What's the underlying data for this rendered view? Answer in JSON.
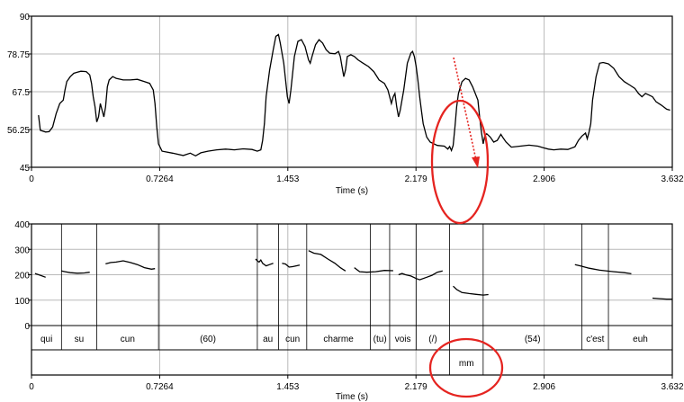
{
  "chart_data": [
    {
      "type": "line",
      "title": "",
      "xlabel": "Time (s)",
      "ylabel": "",
      "xlim": [
        0,
        3.632
      ],
      "ylim": [
        45,
        90
      ],
      "x_ticks": [
        "0",
        "0.7264",
        "1.453",
        "2.179",
        "2.906",
        "3.632"
      ],
      "y_ticks": [
        "45",
        "56.25",
        "67.5",
        "78.75",
        "90"
      ],
      "grid": true,
      "series": [
        {
          "points": [
            [
              0.04,
              60.5
            ],
            [
              0.05,
              56
            ],
            [
              0.08,
              55.5
            ],
            [
              0.1,
              55.6
            ],
            [
              0.12,
              57
            ],
            [
              0.14,
              61
            ],
            [
              0.16,
              64
            ],
            [
              0.18,
              65
            ],
            [
              0.19,
              68
            ],
            [
              0.2,
              70.5
            ],
            [
              0.22,
              72
            ],
            [
              0.24,
              73
            ],
            [
              0.26,
              73.3
            ],
            [
              0.28,
              73.6
            ],
            [
              0.31,
              73.5
            ],
            [
              0.33,
              72.5
            ],
            [
              0.34,
              70
            ],
            [
              0.35,
              66
            ],
            [
              0.36,
              63
            ],
            [
              0.37,
              58.5
            ],
            [
              0.38,
              60
            ],
            [
              0.39,
              64
            ],
            [
              0.4,
              62
            ],
            [
              0.41,
              60
            ],
            [
              0.42,
              63
            ],
            [
              0.43,
              69
            ],
            [
              0.44,
              71
            ],
            [
              0.46,
              72
            ],
            [
              0.48,
              71.5
            ],
            [
              0.52,
              71
            ],
            [
              0.56,
              71
            ],
            [
              0.6,
              71.2
            ],
            [
              0.64,
              70.5
            ],
            [
              0.67,
              70
            ],
            [
              0.69,
              68
            ],
            [
              0.7,
              64
            ],
            [
              0.71,
              57
            ],
            [
              0.72,
              52
            ],
            [
              0.74,
              49.8
            ],
            [
              0.8,
              49.2
            ],
            [
              0.86,
              48.5
            ],
            [
              0.9,
              49.2
            ],
            [
              0.93,
              48.4
            ],
            [
              0.96,
              49.3
            ],
            [
              1.0,
              49.8
            ],
            [
              1.05,
              50.2
            ],
            [
              1.1,
              50.4
            ],
            [
              1.15,
              50.2
            ],
            [
              1.2,
              50.5
            ],
            [
              1.25,
              50.3
            ],
            [
              1.28,
              49.8
            ],
            [
              1.3,
              50.2
            ],
            [
              1.31,
              53
            ],
            [
              1.32,
              58
            ],
            [
              1.33,
              66
            ],
            [
              1.35,
              74
            ],
            [
              1.37,
              80
            ],
            [
              1.385,
              84
            ],
            [
              1.4,
              84.5
            ],
            [
              1.41,
              82
            ],
            [
              1.43,
              76
            ],
            [
              1.44,
              71
            ],
            [
              1.45,
              66
            ],
            [
              1.46,
              64
            ],
            [
              1.47,
              68
            ],
            [
              1.49,
              78
            ],
            [
              1.51,
              82.5
            ],
            [
              1.53,
              83
            ],
            [
              1.55,
              81
            ],
            [
              1.57,
              77
            ],
            [
              1.58,
              76
            ],
            [
              1.59,
              78
            ],
            [
              1.61,
              81.5
            ],
            [
              1.63,
              83
            ],
            [
              1.65,
              82
            ],
            [
              1.67,
              80
            ],
            [
              1.69,
              79
            ],
            [
              1.72,
              78.8
            ],
            [
              1.74,
              79.5
            ],
            [
              1.75,
              78
            ],
            [
              1.76,
              75
            ],
            [
              1.77,
              72
            ],
            [
              1.78,
              74
            ],
            [
              1.79,
              78
            ],
            [
              1.81,
              78.5
            ],
            [
              1.83,
              78
            ],
            [
              1.85,
              77
            ],
            [
              1.88,
              76
            ],
            [
              1.91,
              75
            ],
            [
              1.94,
              73.5
            ],
            [
              1.97,
              71
            ],
            [
              2.0,
              70
            ],
            [
              2.02,
              68
            ],
            [
              2.04,
              64
            ],
            [
              2.05,
              66
            ],
            [
              2.06,
              67
            ],
            [
              2.07,
              63
            ],
            [
              2.08,
              60
            ],
            [
              2.09,
              62
            ],
            [
              2.11,
              68
            ],
            [
              2.13,
              76
            ],
            [
              2.15,
              79
            ],
            [
              2.16,
              79.5
            ],
            [
              2.17,
              78
            ],
            [
              2.18,
              75
            ],
            [
              2.19,
              71
            ],
            [
              2.2,
              66
            ],
            [
              2.21,
              62
            ],
            [
              2.22,
              58
            ],
            [
              2.24,
              54
            ],
            [
              2.26,
              52.5
            ],
            [
              2.3,
              51.5
            ],
            [
              2.34,
              51.3
            ],
            [
              2.36,
              50.4
            ],
            [
              2.37,
              51.2
            ],
            [
              2.38,
              50
            ],
            [
              2.39,
              51.5
            ],
            [
              2.4,
              57
            ],
            [
              2.41,
              63
            ],
            [
              2.42,
              67
            ],
            [
              2.44,
              70.5
            ],
            [
              2.46,
              71.5
            ],
            [
              2.48,
              71
            ],
            [
              2.5,
              69
            ],
            [
              2.53,
              65
            ],
            [
              2.54,
              60
            ],
            [
              2.55,
              55.5
            ],
            [
              2.56,
              52
            ],
            [
              2.57,
              54.5
            ],
            [
              2.58,
              55
            ],
            [
              2.6,
              54
            ],
            [
              2.62,
              52.5
            ],
            [
              2.64,
              53
            ],
            [
              2.66,
              54.8
            ],
            [
              2.67,
              54
            ],
            [
              2.69,
              52.5
            ],
            [
              2.72,
              51
            ],
            [
              2.77,
              51.3
            ],
            [
              2.82,
              51.6
            ],
            [
              2.87,
              51.3
            ],
            [
              2.9,
              50.8
            ],
            [
              2.93,
              50.4
            ],
            [
              2.96,
              50.2
            ],
            [
              3.0,
              50.4
            ],
            [
              3.04,
              50.3
            ],
            [
              3.08,
              51.1
            ],
            [
              3.1,
              53
            ],
            [
              3.12,
              54.3
            ],
            [
              3.14,
              55.2
            ],
            [
              3.15,
              53.5
            ],
            [
              3.16,
              55.5
            ],
            [
              3.17,
              58
            ],
            [
              3.18,
              65
            ],
            [
              3.2,
              72
            ],
            [
              3.22,
              76
            ],
            [
              3.24,
              76.2
            ],
            [
              3.27,
              75.8
            ],
            [
              3.3,
              74.5
            ],
            [
              3.33,
              72
            ],
            [
              3.36,
              70.5
            ],
            [
              3.39,
              69.5
            ],
            [
              3.42,
              68.5
            ],
            [
              3.44,
              67
            ],
            [
              3.46,
              66
            ],
            [
              3.48,
              67
            ],
            [
              3.5,
              66.5
            ],
            [
              3.52,
              66
            ],
            [
              3.54,
              64.5
            ],
            [
              3.57,
              63.5
            ],
            [
              3.6,
              62.3
            ],
            [
              3.62,
              62
            ]
          ]
        }
      ]
    },
    {
      "type": "line",
      "title": "",
      "xlabel": "Time (s)",
      "ylabel": "",
      "xlim": [
        0,
        3.632
      ],
      "ylim": [
        0,
        400
      ],
      "x_ticks": [
        "0",
        "0.7264",
        "1.453",
        "2.179",
        "2.906",
        "3.632"
      ],
      "y_ticks": [
        "0",
        "100",
        "200",
        "300",
        "400"
      ],
      "grid": true,
      "series": [
        {
          "points": [
            [
              0.02,
              205
            ],
            [
              0.05,
              198
            ],
            [
              0.08,
              190
            ]
          ]
        },
        {
          "points": [
            [
              0.17,
              215
            ],
            [
              0.19,
              212
            ],
            [
              0.22,
              208
            ],
            [
              0.26,
              206
            ],
            [
              0.3,
              207
            ],
            [
              0.33,
              210
            ]
          ]
        },
        {
          "points": [
            [
              0.42,
              243
            ],
            [
              0.45,
              248
            ],
            [
              0.48,
              250
            ],
            [
              0.52,
              255
            ],
            [
              0.56,
              248
            ],
            [
              0.6,
              240
            ],
            [
              0.64,
              228
            ],
            [
              0.68,
              222
            ],
            [
              0.7,
              224
            ]
          ]
        },
        {
          "points": [
            [
              1.27,
              262
            ],
            [
              1.28,
              255
            ],
            [
              1.29,
              250
            ],
            [
              1.3,
              258
            ],
            [
              1.31,
              245
            ],
            [
              1.33,
              235
            ],
            [
              1.35,
              240
            ],
            [
              1.37,
              245
            ]
          ]
        },
        {
          "points": [
            [
              1.42,
              245
            ],
            [
              1.44,
              242
            ],
            [
              1.46,
              230
            ],
            [
              1.48,
              232
            ],
            [
              1.5,
              235
            ],
            [
              1.52,
              238
            ]
          ]
        },
        {
          "points": [
            [
              1.57,
              295
            ],
            [
              1.6,
              285
            ],
            [
              1.64,
              280
            ],
            [
              1.68,
              262
            ],
            [
              1.72,
              245
            ],
            [
              1.75,
              228
            ],
            [
              1.78,
              215
            ]
          ]
        },
        {
          "points": [
            [
              1.83,
              228
            ],
            [
              1.86,
              212
            ],
            [
              1.9,
              210
            ],
            [
              1.95,
              212
            ],
            [
              2.0,
              217
            ],
            [
              2.05,
              216
            ]
          ]
        },
        {
          "points": [
            [
              2.08,
              200
            ],
            [
              2.1,
              205
            ],
            [
              2.12,
              200
            ],
            [
              2.15,
              195
            ],
            [
              2.18,
              185
            ],
            [
              2.2,
              180
            ],
            [
              2.24,
              190
            ],
            [
              2.27,
              198
            ],
            [
              2.3,
              210
            ],
            [
              2.33,
              215
            ]
          ]
        },
        {
          "points": [
            [
              2.39,
              155
            ],
            [
              2.41,
              142
            ],
            [
              2.44,
              130
            ],
            [
              2.48,
              126
            ],
            [
              2.52,
              123
            ],
            [
              2.56,
              120
            ],
            [
              2.59,
              122
            ]
          ]
        },
        {
          "points": [
            [
              3.08,
              240
            ],
            [
              3.11,
              235
            ],
            [
              3.16,
              226
            ],
            [
              3.22,
              218
            ],
            [
              3.3,
              212
            ],
            [
              3.36,
              208
            ],
            [
              3.4,
              204
            ]
          ]
        },
        {
          "points": [
            [
              3.52,
              108
            ],
            [
              3.56,
              106
            ],
            [
              3.6,
              104
            ],
            [
              3.63,
              104
            ]
          ]
        }
      ],
      "annotation_tier_1": [
        {
          "label": "qui",
          "start": 0.0,
          "end": 0.17
        },
        {
          "label": "su",
          "start": 0.17,
          "end": 0.37
        },
        {
          "label": "cun",
          "start": 0.37,
          "end": 0.72
        },
        {
          "label": "(60)",
          "start": 0.72,
          "end": 1.28
        },
        {
          "label": "au",
          "start": 1.28,
          "end": 1.4
        },
        {
          "label": "cun",
          "start": 1.4,
          "end": 1.56
        },
        {
          "label": "charme",
          "start": 1.56,
          "end": 1.92
        },
        {
          "label": "(tu)",
          "start": 1.92,
          "end": 2.03
        },
        {
          "label": "vois",
          "start": 2.03,
          "end": 2.18
        },
        {
          "label": "(/)",
          "start": 2.18,
          "end": 2.37
        },
        {
          "label": "",
          "start": 2.37,
          "end": 2.56
        },
        {
          "label": "(54)",
          "start": 2.56,
          "end": 3.12
        },
        {
          "label": "c'est",
          "start": 3.12,
          "end": 3.27
        },
        {
          "label": "euh",
          "start": 3.27,
          "end": 3.632
        }
      ],
      "annotation_tier_2": [
        {
          "label": "",
          "start": 0.0,
          "end": 2.37
        },
        {
          "label": "mm",
          "start": 2.37,
          "end": 2.56
        },
        {
          "label": "",
          "start": 2.56,
          "end": 3.632
        }
      ]
    }
  ],
  "annotations_colors": {
    "highlight": "#e52420",
    "arrow": "#e52420",
    "line": "#000000",
    "grid": "#b9b9b9"
  }
}
